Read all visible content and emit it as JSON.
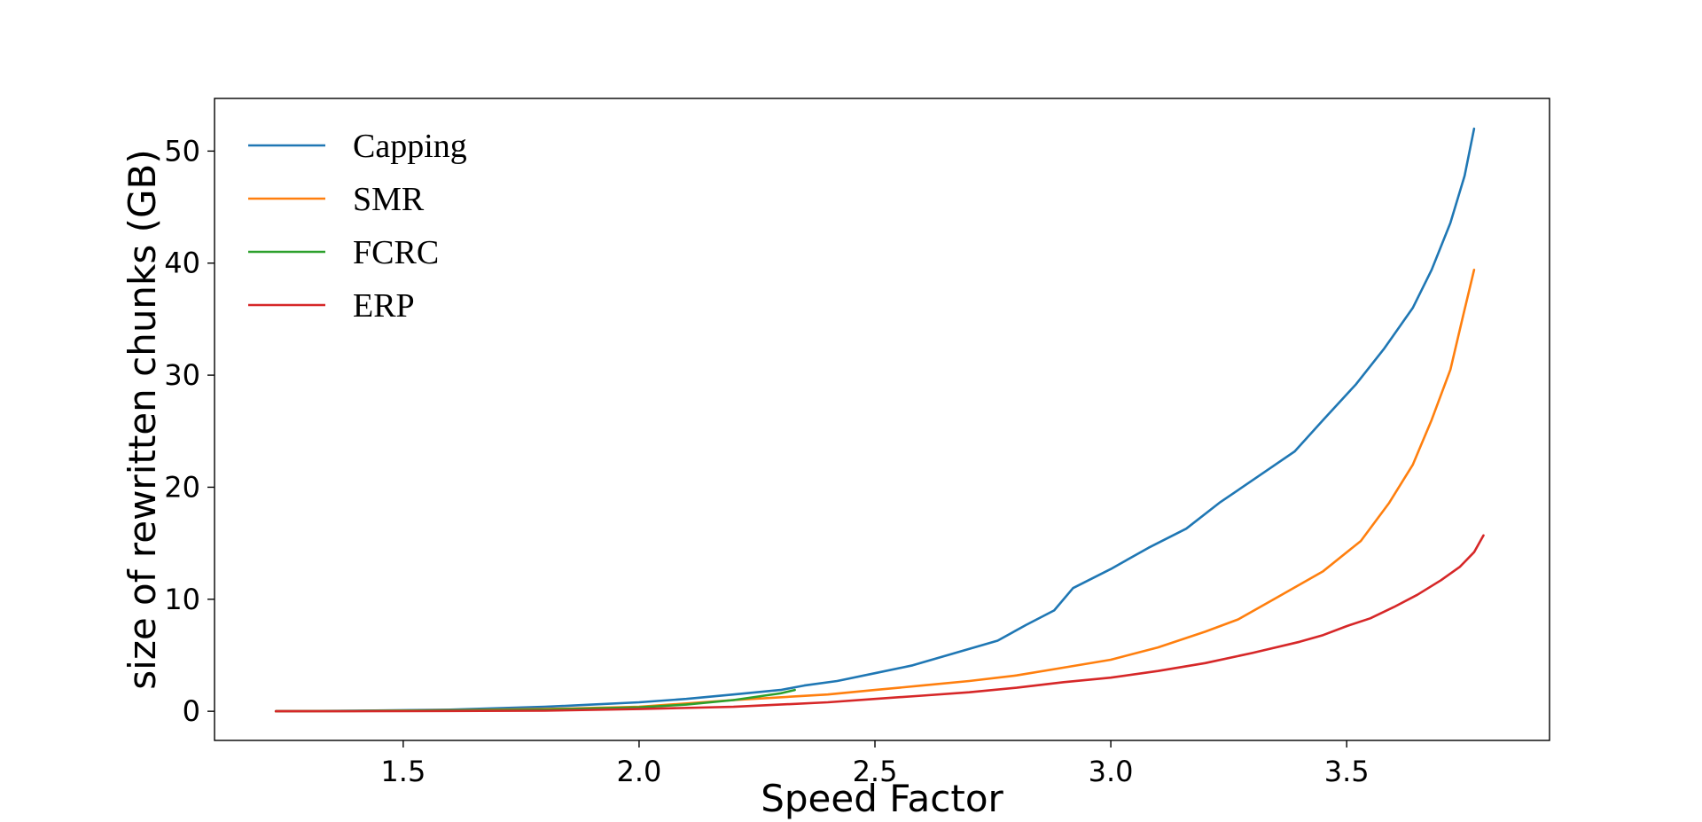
{
  "chart_data": {
    "type": "line",
    "title": "",
    "xlabel": "Speed Factor",
    "ylabel": "size of rewritten chunks (GB)",
    "xlim": [
      1.1,
      3.93
    ],
    "ylim": [
      -2.6,
      54.7
    ],
    "xticks": [
      1.5,
      2.0,
      2.5,
      3.0,
      3.5
    ],
    "xtick_labels": [
      "1.5",
      "2.0",
      "2.5",
      "3.0",
      "3.5"
    ],
    "yticks": [
      0,
      10,
      20,
      30,
      40,
      50
    ],
    "ytick_labels": [
      "0",
      "10",
      "20",
      "30",
      "40",
      "50"
    ],
    "grid": false,
    "legend": "top-left",
    "series": [
      {
        "name": "Capping",
        "color": "#1f77b4",
        "x": [
          1.23,
          1.4,
          1.6,
          1.8,
          1.9,
          2.0,
          2.1,
          2.2,
          2.3,
          2.35,
          2.42,
          2.5,
          2.58,
          2.67,
          2.76,
          2.82,
          2.88,
          2.92,
          3.0,
          3.08,
          3.16,
          3.23,
          3.31,
          3.39,
          3.45,
          3.52,
          3.58,
          3.64,
          3.68,
          3.72,
          3.75,
          3.77
        ],
        "y": [
          0,
          0.05,
          0.15,
          0.4,
          0.6,
          0.8,
          1.1,
          1.5,
          1.9,
          2.3,
          2.7,
          3.4,
          4.1,
          5.2,
          6.3,
          7.7,
          9.0,
          11.0,
          12.7,
          14.6,
          16.3,
          18.6,
          20.9,
          23.2,
          26.0,
          29.2,
          32.4,
          36.0,
          39.4,
          43.6,
          47.8,
          52.0
        ]
      },
      {
        "name": "SMR",
        "color": "#ff7f0e",
        "x": [
          1.23,
          1.4,
          1.6,
          1.8,
          2.0,
          2.2,
          2.4,
          2.5,
          2.6,
          2.7,
          2.8,
          2.9,
          3.0,
          3.1,
          3.2,
          3.27,
          3.35,
          3.45,
          3.53,
          3.59,
          3.64,
          3.68,
          3.72,
          3.745,
          3.77
        ],
        "y": [
          0,
          0.03,
          0.1,
          0.2,
          0.4,
          1.0,
          1.5,
          1.9,
          2.3,
          2.7,
          3.2,
          3.9,
          4.6,
          5.7,
          7.1,
          8.2,
          10.1,
          12.5,
          15.2,
          18.6,
          22.0,
          26.0,
          30.5,
          35.0,
          39.4
        ]
      },
      {
        "name": "FCRC",
        "color": "#2ca02c",
        "x": [
          1.23,
          1.5,
          1.8,
          2.0,
          2.1,
          2.2,
          2.3,
          2.33
        ],
        "y": [
          0,
          0.05,
          0.15,
          0.35,
          0.6,
          1.0,
          1.6,
          1.9
        ]
      },
      {
        "name": "ERP",
        "color": "#d62728",
        "x": [
          1.23,
          1.5,
          1.8,
          2.0,
          2.2,
          2.4,
          2.5,
          2.6,
          2.7,
          2.8,
          2.9,
          3.0,
          3.1,
          3.2,
          3.3,
          3.4,
          3.45,
          3.5,
          3.55,
          3.6,
          3.65,
          3.7,
          3.74,
          3.77,
          3.79
        ],
        "y": [
          0,
          0.01,
          0.05,
          0.2,
          0.4,
          0.8,
          1.1,
          1.4,
          1.7,
          2.1,
          2.6,
          3.0,
          3.6,
          4.3,
          5.2,
          6.2,
          6.8,
          7.6,
          8.3,
          9.3,
          10.4,
          11.7,
          12.9,
          14.2,
          15.7
        ]
      }
    ]
  }
}
